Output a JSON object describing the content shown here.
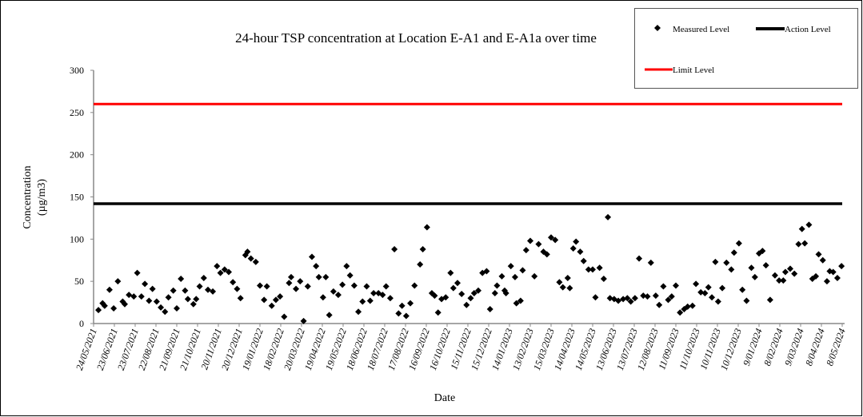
{
  "chart_data": {
    "type": "scatter",
    "title": "24-hour TSP concentration at Location E-A1 and E-A1a over time",
    "xlabel": "Date",
    "ylabel": "Concentration",
    "ylabel_unit": "(µg/m3)",
    "ylim": [
      0,
      300
    ],
    "yticks": [
      "0",
      "50",
      "100",
      "150",
      "200",
      "250",
      "300"
    ],
    "x_unit": "days since 24/05/2021",
    "xlim": [
      0,
      1080
    ],
    "xtick_step_days": 30,
    "xticks": [
      "24/05/2021",
      "23/06/2021",
      "23/07/2021",
      "22/08/2021",
      "21/09/2021",
      "21/10/2021",
      "20/11/2021",
      "20/12/2021",
      "19/01/2022",
      "18/02/2022",
      "20/03/2022",
      "19/04/2022",
      "19/05/2022",
      "18/06/2022",
      "18/07/2022",
      "17/08/2022",
      "16/09/2022",
      "16/10/2022",
      "15/11/2022",
      "15/12/2022",
      "14/01/2023",
      "13/02/2023",
      "15/03/2023",
      "14/04/2023",
      "14/05/2023",
      "13/06/2023",
      "13/07/2023",
      "12/08/2023",
      "11/09/2023",
      "11/10/2023",
      "10/11/2023",
      "10/12/2023",
      "9/01/2024",
      "8/02/2024",
      "9/03/2024",
      "8/04/2024",
      "8/05/2024"
    ],
    "grid": false,
    "legend_position": "top-right",
    "legend": [
      "Measured Level",
      "Action Level",
      "Limit Level"
    ],
    "series": [
      {
        "name": "Measured Level",
        "kind": "scatter",
        "color": "#000000",
        "points": [
          [
            7,
            16
          ],
          [
            13,
            24
          ],
          [
            16,
            21
          ],
          [
            23,
            40
          ],
          [
            29,
            18
          ],
          [
            35,
            50
          ],
          [
            42,
            26
          ],
          [
            45,
            23
          ],
          [
            51,
            34
          ],
          [
            58,
            32
          ],
          [
            63,
            60
          ],
          [
            69,
            32
          ],
          [
            74,
            47
          ],
          [
            80,
            27
          ],
          [
            85,
            41
          ],
          [
            91,
            26
          ],
          [
            97,
            19
          ],
          [
            103,
            14
          ],
          [
            108,
            31
          ],
          [
            115,
            39
          ],
          [
            120,
            18
          ],
          [
            126,
            53
          ],
          [
            132,
            39
          ],
          [
            136,
            29
          ],
          [
            144,
            23
          ],
          [
            148,
            29
          ],
          [
            153,
            44
          ],
          [
            159,
            54
          ],
          [
            165,
            40
          ],
          [
            172,
            38
          ],
          [
            178,
            68
          ],
          [
            183,
            60
          ],
          [
            189,
            64
          ],
          [
            195,
            61
          ],
          [
            201,
            49
          ],
          [
            207,
            41
          ],
          [
            212,
            30
          ],
          [
            219,
            81
          ],
          [
            222,
            85
          ],
          [
            227,
            77
          ],
          [
            234,
            73
          ],
          [
            240,
            45
          ],
          [
            246,
            28
          ],
          [
            250,
            44
          ],
          [
            257,
            21
          ],
          [
            263,
            28
          ],
          [
            269,
            32
          ],
          [
            275,
            8
          ],
          [
            282,
            48
          ],
          [
            285,
            55
          ],
          [
            292,
            41
          ],
          [
            298,
            50
          ],
          [
            303,
            3
          ],
          [
            309,
            44
          ],
          [
            315,
            79
          ],
          [
            321,
            68
          ],
          [
            325,
            55
          ],
          [
            331,
            31
          ],
          [
            335,
            55
          ],
          [
            340,
            10
          ],
          [
            346,
            38
          ],
          [
            353,
            34
          ],
          [
            359,
            46
          ],
          [
            365,
            68
          ],
          [
            370,
            57
          ],
          [
            376,
            45
          ],
          [
            382,
            14
          ],
          [
            388,
            26
          ],
          [
            394,
            44
          ],
          [
            399,
            27
          ],
          [
            404,
            36
          ],
          [
            411,
            36
          ],
          [
            417,
            34
          ],
          [
            422,
            44
          ],
          [
            428,
            30
          ],
          [
            434,
            88
          ],
          [
            440,
            12
          ],
          [
            445,
            21
          ],
          [
            451,
            9
          ],
          [
            457,
            24
          ],
          [
            463,
            45
          ],
          [
            471,
            70
          ],
          [
            475,
            88
          ],
          [
            481,
            114
          ],
          [
            488,
            36
          ],
          [
            492,
            33
          ],
          [
            497,
            13
          ],
          [
            502,
            29
          ],
          [
            508,
            31
          ],
          [
            515,
            60
          ],
          [
            519,
            42
          ],
          [
            525,
            48
          ],
          [
            531,
            35
          ],
          [
            538,
            22
          ],
          [
            544,
            30
          ],
          [
            549,
            36
          ],
          [
            555,
            39
          ],
          [
            561,
            60
          ],
          [
            567,
            62
          ],
          [
            572,
            17
          ],
          [
            579,
            36
          ],
          [
            582,
            45
          ],
          [
            589,
            56
          ],
          [
            593,
            39
          ],
          [
            595,
            36
          ],
          [
            602,
            68
          ],
          [
            608,
            55
          ],
          [
            610,
            24
          ],
          [
            616,
            27
          ],
          [
            619,
            63
          ],
          [
            624,
            87
          ],
          [
            630,
            98
          ],
          [
            636,
            56
          ],
          [
            642,
            94
          ],
          [
            649,
            85
          ],
          [
            654,
            82
          ],
          [
            660,
            102
          ],
          [
            666,
            99
          ],
          [
            672,
            49
          ],
          [
            677,
            43
          ],
          [
            684,
            54
          ],
          [
            687,
            42
          ],
          [
            692,
            89
          ],
          [
            696,
            97
          ],
          [
            702,
            85
          ],
          [
            707,
            74
          ],
          [
            714,
            64
          ],
          [
            720,
            64
          ],
          [
            724,
            31
          ],
          [
            730,
            66
          ],
          [
            736,
            53
          ],
          [
            742,
            126
          ],
          [
            745,
            30
          ],
          [
            751,
            29
          ],
          [
            757,
            27
          ],
          [
            764,
            29
          ],
          [
            770,
            30
          ],
          [
            775,
            26
          ],
          [
            781,
            30
          ],
          [
            787,
            77
          ],
          [
            793,
            33
          ],
          [
            799,
            32
          ],
          [
            804,
            72
          ],
          [
            811,
            33
          ],
          [
            816,
            22
          ],
          [
            822,
            44
          ],
          [
            829,
            28
          ],
          [
            834,
            32
          ],
          [
            840,
            45
          ],
          [
            846,
            13
          ],
          [
            852,
            17
          ],
          [
            857,
            20
          ],
          [
            864,
            21
          ],
          [
            869,
            47
          ],
          [
            876,
            37
          ],
          [
            882,
            36
          ],
          [
            887,
            43
          ],
          [
            892,
            31
          ],
          [
            897,
            73
          ],
          [
            901,
            26
          ],
          [
            907,
            42
          ],
          [
            913,
            72
          ],
          [
            920,
            64
          ],
          [
            924,
            84
          ],
          [
            931,
            95
          ],
          [
            936,
            40
          ],
          [
            942,
            27
          ],
          [
            949,
            66
          ],
          [
            954,
            55
          ],
          [
            960,
            83
          ],
          [
            965,
            86
          ],
          [
            970,
            69
          ],
          [
            976,
            28
          ],
          [
            983,
            57
          ],
          [
            989,
            51
          ],
          [
            995,
            51
          ],
          [
            998,
            61
          ],
          [
            1005,
            65
          ],
          [
            1011,
            59
          ],
          [
            1017,
            94
          ],
          [
            1022,
            112
          ],
          [
            1026,
            95
          ],
          [
            1032,
            117
          ],
          [
            1037,
            53
          ],
          [
            1042,
            56
          ],
          [
            1046,
            82
          ],
          [
            1052,
            75
          ],
          [
            1058,
            50
          ],
          [
            1062,
            62
          ],
          [
            1067,
            61
          ],
          [
            1073,
            54
          ],
          [
            1079,
            68
          ]
        ]
      },
      {
        "name": "Action Level",
        "kind": "hline",
        "value": 142,
        "color": "#000000"
      },
      {
        "name": "Limit Level",
        "kind": "hline",
        "value": 260,
        "color": "#ff0000"
      }
    ]
  }
}
